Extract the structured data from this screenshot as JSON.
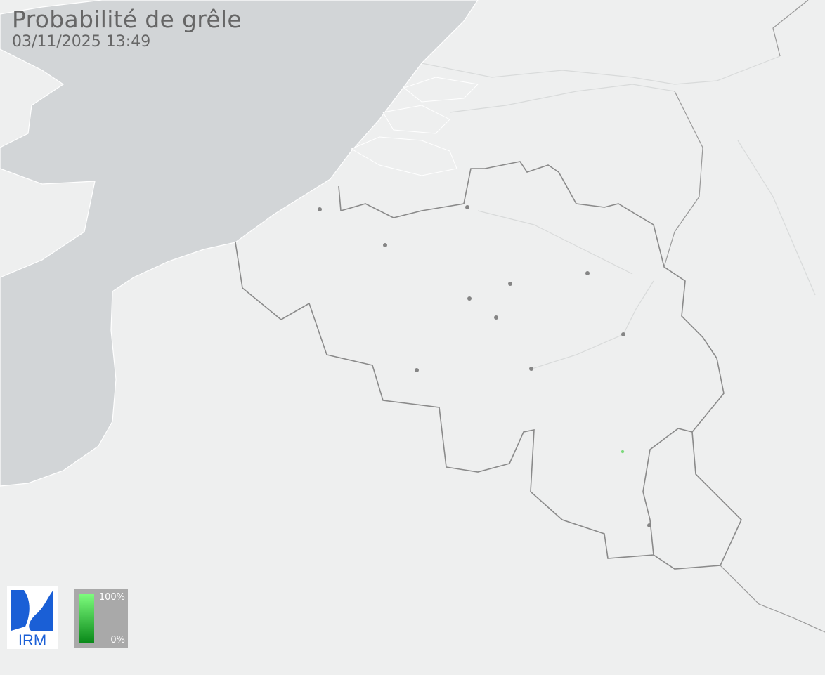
{
  "header": {
    "title": "Probabilité de grêle",
    "timestamp": "03/11/2025 13:49"
  },
  "legend": {
    "max_label": "100%",
    "min_label": "0%",
    "color_high": "#7dfc7d",
    "color_low": "#0a8a1a"
  },
  "logo": {
    "text": "IRM",
    "color": "#1a5fd6"
  },
  "colors": {
    "sea": "#d2d5d7",
    "land": "#eeefef",
    "border": "#8a8a8a",
    "city": "#858585",
    "hail": "#7dd97d"
  }
}
